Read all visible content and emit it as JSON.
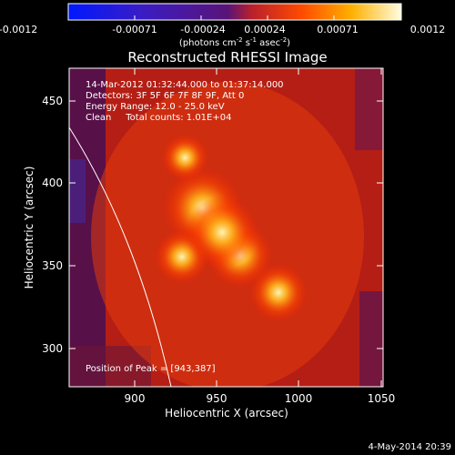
{
  "colorbar": {
    "tick_labels": [
      "-0.0012",
      "-0.00071",
      "-0.00024",
      "0.00024",
      "0.00071",
      "0.0012"
    ],
    "unit_parts": [
      "(photons cm",
      "-2",
      " s",
      "-1",
      " asec",
      "-2",
      ")"
    ]
  },
  "title": "Reconstructed RHESSI Image",
  "info": {
    "time_range": "14-Mar-2012 01:32:44.000 to 01:37:14.000",
    "detectors": "Detectors: 3F 5F 6F 7F 8F 9F, Att 0",
    "energy": "Energy Range: 12.0 - 25.0 keV",
    "clean": "Clean     Total counts: 1.01E+04"
  },
  "peak_text": "Position of Peak = [943,387]",
  "axes": {
    "xlabel": "Heliocentric X (arcsec)",
    "ylabel": "Heliocentric Y (arcsec)",
    "x_ticks": [
      "900",
      "950",
      "1000",
      "1050"
    ],
    "y_ticks": [
      "450",
      "400",
      "350",
      "300"
    ],
    "x_range": [
      860,
      1055
    ],
    "y_range": [
      277,
      473
    ]
  },
  "sources": [
    {
      "x": 943,
      "y": 387
    },
    {
      "x": 966,
      "y": 358
    },
    {
      "x": 930,
      "y": 357
    },
    {
      "x": 990,
      "y": 335
    },
    {
      "x": 932,
      "y": 418
    },
    {
      "x": 955,
      "y": 372
    }
  ],
  "footer_date": "4-May-2014 20:39",
  "colors": {
    "background": "#000000",
    "text": "#ffffff"
  }
}
